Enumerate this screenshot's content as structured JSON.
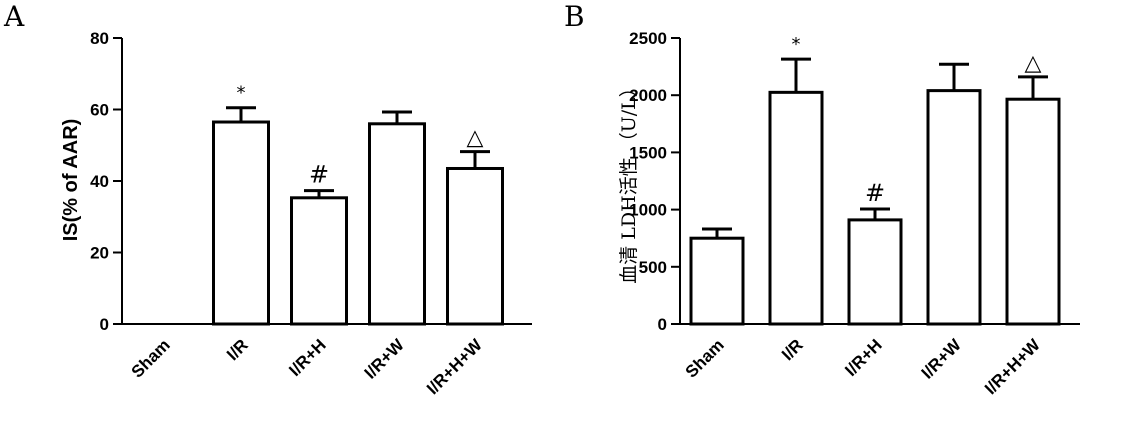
{
  "chart_data": [
    {
      "type": "bar",
      "panel_label": "A",
      "categories": [
        "Sham",
        "I/R",
        "I/R+H",
        "I/R+W",
        "I/R+H+W"
      ],
      "values": [
        0,
        56.5,
        35.3,
        56.0,
        43.5
      ],
      "errors": [
        0,
        4.0,
        2.0,
        3.3,
        4.7
      ],
      "annotations": [
        "",
        "*",
        "#",
        "",
        "△"
      ],
      "ylabel": "IS(% of AAR)",
      "ylim": [
        0,
        80
      ],
      "yticks": [
        0,
        20,
        40,
        60,
        80
      ],
      "ytick_labels": [
        "0",
        "20",
        "40",
        "60",
        "80"
      ],
      "grid": false,
      "bar_fill": "#ffffff",
      "bar_stroke": "#000000"
    },
    {
      "type": "bar",
      "panel_label": "B",
      "categories": [
        "Sham",
        "I/R",
        "I/R+H",
        "I/R+W",
        "I/R+H+W"
      ],
      "values": [
        750,
        2025,
        910,
        2040,
        1965
      ],
      "errors": [
        80,
        290,
        95,
        230,
        195
      ],
      "annotations": [
        "",
        "*",
        "#",
        "",
        "△"
      ],
      "ylabel": "血清 LDH活性 （U/L）",
      "ylim": [
        0,
        2500
      ],
      "yticks": [
        0,
        500,
        1000,
        1500,
        2000,
        2500
      ],
      "ytick_labels": [
        "0",
        "500",
        "1000",
        "1500",
        "2000",
        "2500"
      ],
      "grid": false,
      "bar_fill": "#ffffff",
      "bar_stroke": "#000000"
    }
  ]
}
